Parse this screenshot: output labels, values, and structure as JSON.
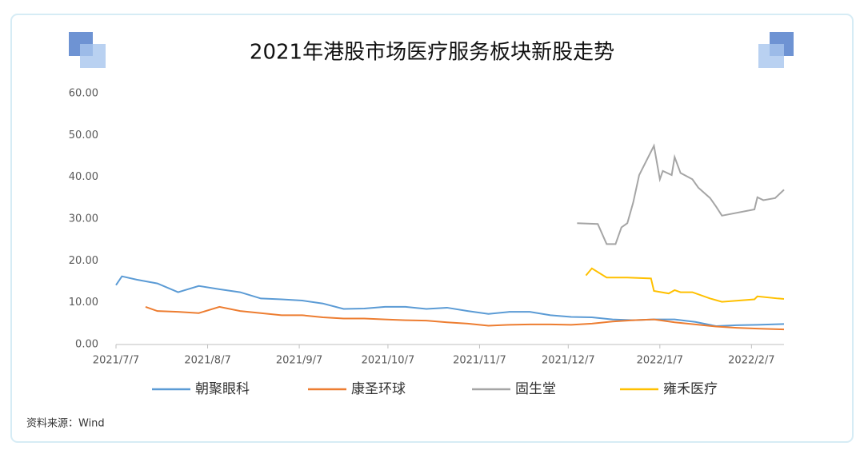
{
  "chart_data": {
    "type": "line",
    "title": "2021年港股市场医疗服务板块新股走势",
    "source": "资料来源：Wind",
    "xlim": [
      "2021/7/7",
      "2022/2/18"
    ],
    "xticks": [
      "2021/7/7",
      "2021/8/7",
      "2021/9/7",
      "2021/10/7",
      "2021/11/7",
      "2021/12/7",
      "2022/1/7",
      "2022/2/7"
    ],
    "ylim": [
      0,
      60
    ],
    "yticks": [
      {
        "value": 0,
        "label": "0.00"
      },
      {
        "value": 10,
        "label": "10.00"
      },
      {
        "value": 20,
        "label": "20.00"
      },
      {
        "value": 30,
        "label": "30.00"
      },
      {
        "value": 40,
        "label": "40.00"
      },
      {
        "value": 50,
        "label": "50.00"
      },
      {
        "value": 60,
        "label": "60.00"
      }
    ],
    "series": [
      {
        "name": "朝聚眼科",
        "color": "#5b9bd5",
        "x": [
          "2021/7/7",
          "2021/7/9",
          "2021/7/14",
          "2021/7/21",
          "2021/7/28",
          "2021/8/4",
          "2021/8/11",
          "2021/8/18",
          "2021/8/25",
          "2021/9/1",
          "2021/9/8",
          "2021/9/15",
          "2021/9/22",
          "2021/9/29",
          "2021/10/6",
          "2021/10/13",
          "2021/10/20",
          "2021/10/27",
          "2021/11/3",
          "2021/11/10",
          "2021/11/17",
          "2021/11/24",
          "2021/12/1",
          "2021/12/8",
          "2021/12/15",
          "2021/12/22",
          "2021/12/29",
          "2022/1/5",
          "2022/1/12",
          "2022/1/19",
          "2022/1/26",
          "2022/2/2",
          "2022/2/9",
          "2022/2/18"
        ],
        "values": [
          14.2,
          16.3,
          15.5,
          14.6,
          12.5,
          14.0,
          13.2,
          12.5,
          11.0,
          10.8,
          10.5,
          9.8,
          8.5,
          8.6,
          9.0,
          9.0,
          8.5,
          8.8,
          8.0,
          7.3,
          7.8,
          7.8,
          7.0,
          6.6,
          6.5,
          6.0,
          5.8,
          6.0,
          6.0,
          5.4,
          4.4,
          4.6,
          4.7,
          4.9
        ]
      },
      {
        "name": "康圣环球",
        "color": "#ed7d31",
        "x": [
          "2021/7/17",
          "2021/7/21",
          "2021/7/28",
          "2021/8/4",
          "2021/8/11",
          "2021/8/18",
          "2021/8/25",
          "2021/9/1",
          "2021/9/8",
          "2021/9/15",
          "2021/9/22",
          "2021/9/29",
          "2021/10/6",
          "2021/10/13",
          "2021/10/20",
          "2021/10/27",
          "2021/11/3",
          "2021/11/10",
          "2021/11/17",
          "2021/11/24",
          "2021/12/1",
          "2021/12/8",
          "2021/12/15",
          "2021/12/22",
          "2021/12/29",
          "2022/1/5",
          "2022/1/12",
          "2022/1/19",
          "2022/1/26",
          "2022/2/2",
          "2022/2/9",
          "2022/2/18"
        ],
        "values": [
          9.0,
          8.0,
          7.8,
          7.5,
          9.0,
          8.0,
          7.5,
          7.0,
          7.0,
          6.5,
          6.2,
          6.2,
          6.0,
          5.8,
          5.7,
          5.3,
          5.0,
          4.5,
          4.7,
          4.8,
          4.8,
          4.7,
          5.0,
          5.5,
          5.8,
          6.0,
          5.3,
          4.8,
          4.3,
          4.0,
          3.8,
          3.6
        ]
      },
      {
        "name": "固生堂",
        "color": "#a5a5a5",
        "x": [
          "2021/12/10",
          "2021/12/17",
          "2021/12/20",
          "2021/12/23",
          "2021/12/25",
          "2021/12/27",
          "2021/12/29",
          "2021/12/31",
          "2022/1/5",
          "2022/1/7",
          "2022/1/8",
          "2022/1/11",
          "2022/1/12",
          "2022/1/14",
          "2022/1/18",
          "2022/1/20",
          "2022/1/24",
          "2022/1/26",
          "2022/1/28",
          "2022/2/8",
          "2022/2/9",
          "2022/2/11",
          "2022/2/15",
          "2022/2/18"
        ],
        "values": [
          29.0,
          28.8,
          24.0,
          24.0,
          28.0,
          29.0,
          34.0,
          40.5,
          47.5,
          39.5,
          41.5,
          40.5,
          44.8,
          41.0,
          39.5,
          37.5,
          35.0,
          33.0,
          30.8,
          32.3,
          35.2,
          34.5,
          35.0,
          37.0
        ]
      },
      {
        "name": "雍禾医疗",
        "color": "#ffc000",
        "x": [
          "2021/12/13",
          "2021/12/15",
          "2021/12/20",
          "2021/12/27",
          "2022/1/4",
          "2022/1/5",
          "2022/1/10",
          "2022/1/12",
          "2022/1/14",
          "2022/1/18",
          "2022/1/24",
          "2022/1/28",
          "2022/2/8",
          "2022/2/9",
          "2022/2/16",
          "2022/2/18"
        ],
        "values": [
          16.5,
          18.2,
          16.0,
          16.0,
          15.8,
          12.8,
          12.2,
          13.0,
          12.5,
          12.5,
          11.0,
          10.2,
          10.8,
          11.5,
          11.0,
          10.9
        ]
      }
    ]
  }
}
